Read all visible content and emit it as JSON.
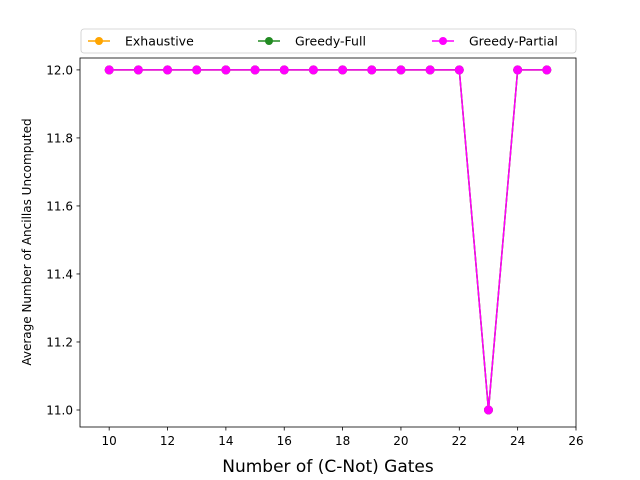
{
  "chart_data": {
    "type": "line",
    "title": "",
    "xlabel": "Number of (C-Not) Gates",
    "ylabel": "Average Number of Ancillas Uncomputed",
    "xlim": [
      9,
      26
    ],
    "ylim": [
      10.95,
      12.035
    ],
    "xticks": [
      10,
      12,
      14,
      16,
      18,
      20,
      22,
      24,
      26
    ],
    "yticks": [
      11.0,
      11.2,
      11.4,
      11.6,
      11.8,
      12.0
    ],
    "xtick_labels": [
      "10",
      "12",
      "14",
      "16",
      "18",
      "20",
      "22",
      "24",
      "26"
    ],
    "ytick_labels": [
      "11.0",
      "11.2",
      "11.4",
      "11.6",
      "11.8",
      "12.0"
    ],
    "grid": false,
    "legend_position": "top",
    "x": [
      10,
      11,
      12,
      13,
      14,
      15,
      16,
      17,
      18,
      19,
      20,
      21,
      22,
      23,
      24,
      25
    ],
    "series": [
      {
        "name": "Exhaustive",
        "color": "#ffa500",
        "values": [
          12,
          12,
          12,
          12,
          12,
          12,
          12,
          12,
          12,
          12,
          12,
          12,
          12,
          11,
          12,
          12
        ]
      },
      {
        "name": "Greedy-Full",
        "color": "#228b22",
        "values": [
          12,
          12,
          12,
          12,
          12,
          12,
          12,
          12,
          12,
          12,
          12,
          12,
          12,
          11,
          12,
          12
        ]
      },
      {
        "name": "Greedy-Partial",
        "color": "#ff00ff",
        "values": [
          12,
          12,
          12,
          12,
          12,
          12,
          12,
          12,
          12,
          12,
          12,
          12,
          12,
          11,
          12,
          12
        ]
      }
    ]
  }
}
